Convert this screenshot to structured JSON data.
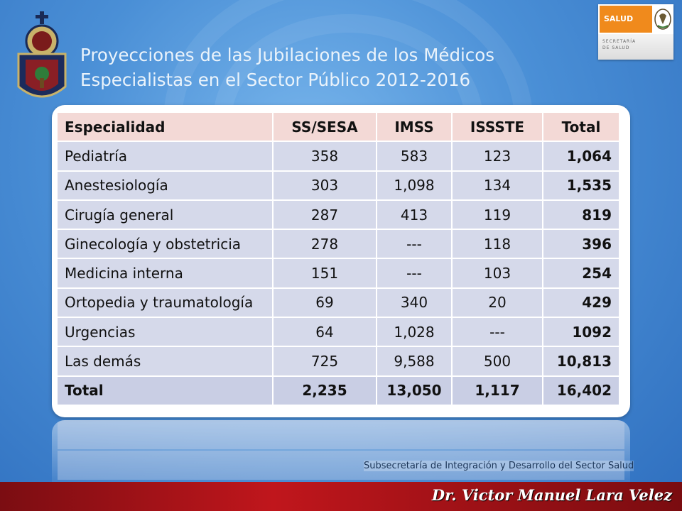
{
  "slide": {
    "title_line1": "Proyecciones de las Jubilaciones de los Médicos",
    "title_line2": "Especialistas en el Sector Público 2012-2016",
    "subsecretaria": "Subsecretaría de Integración y Desarrollo del Sector Salud",
    "footer_name": "Dr. Victor Manuel Lara Velez"
  },
  "salud_logo": {
    "brand": "SALUD",
    "sub_line1": "SECRETARÍA",
    "sub_line2": "DE SALUD",
    "colors": {
      "orange": "#f08a1c"
    }
  },
  "emblem": {
    "icon": "universidad-de-guadalajara-seal-icon"
  },
  "table": {
    "headers": [
      "Especialidad",
      "SS/SESA",
      "IMSS",
      "ISSSTE",
      "Total"
    ],
    "rows": [
      [
        "Pediatría",
        "358",
        "583",
        "123",
        "1,064"
      ],
      [
        "Anestesiología",
        "303",
        "1,098",
        "134",
        "1,535"
      ],
      [
        "Cirugía general",
        "287",
        "413",
        "119",
        "819"
      ],
      [
        "Ginecología y obstetricia",
        "278",
        "---",
        "118",
        "396"
      ],
      [
        "Medicina interna",
        "151",
        "---",
        "103",
        "254"
      ],
      [
        "Ortopedia y traumatología",
        "69",
        "340",
        "20",
        "429"
      ],
      [
        "Urgencias",
        "64",
        "1,028",
        "---",
        "1092"
      ],
      [
        "Las demás",
        "725",
        "9,588",
        "500",
        "10,813"
      ],
      [
        "Total",
        "2,235",
        "13,050",
        "1,117",
        "16,402"
      ]
    ]
  },
  "colors": {
    "header_bg": "#f3d9d6",
    "row_bg": "#d5d9ea",
    "footer_red": "#c0161c"
  }
}
